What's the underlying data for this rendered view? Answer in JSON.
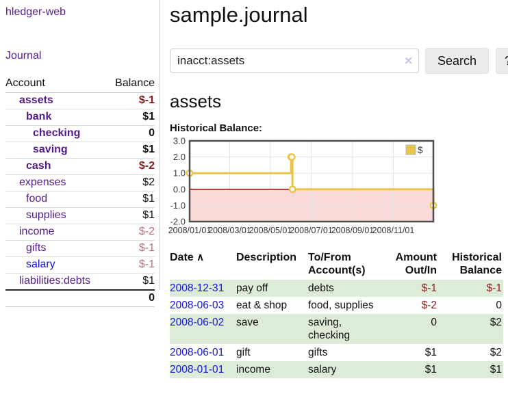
{
  "sidebar": {
    "app_title": "hledger-web",
    "nav_journal": "Journal",
    "accounts_table": {
      "col_account": "Account",
      "col_balance": "Balance",
      "rows": [
        {
          "name": "assets",
          "balance": "$-1",
          "indent": 1,
          "bold": true,
          "neg": true
        },
        {
          "name": "bank",
          "balance": "$1",
          "indent": 2,
          "bold": true
        },
        {
          "name": "checking",
          "balance": "0",
          "indent": 3,
          "bold": true
        },
        {
          "name": "saving",
          "balance": "$1",
          "indent": 3,
          "bold": true
        },
        {
          "name": "cash",
          "balance": "$-2",
          "indent": 2,
          "bold": true,
          "neg": true
        },
        {
          "name": "expenses",
          "balance": "$2",
          "indent": 1
        },
        {
          "name": "food",
          "balance": "$1",
          "indent": 2
        },
        {
          "name": "supplies",
          "balance": "$1",
          "indent": 2
        },
        {
          "name": "income",
          "balance": "$-2",
          "indent": 1,
          "negLight": true
        },
        {
          "name": "gifts",
          "balance": "$-1",
          "indent": 2,
          "negLight": true
        },
        {
          "name": "salary",
          "balance": "$-1",
          "indent": 2,
          "negLight": true,
          "blue": true
        },
        {
          "name": "liabilities:debts",
          "balance": "$1",
          "indent": 1
        }
      ],
      "total": "0"
    }
  },
  "main": {
    "title": "sample.journal",
    "search": {
      "value": "inacct:assets",
      "clear_icon": "✕",
      "button": "Search",
      "help_button": "?"
    },
    "account_heading": "assets",
    "chart_label": "Historical Balance:"
  },
  "chart_data": {
    "type": "line",
    "step": true,
    "title": "Historical Balance",
    "legend": "$",
    "legend_position": "top-right",
    "grid": true,
    "ylim": [
      -2.0,
      3.0
    ],
    "yticks": [
      "3.0",
      "2.0",
      "1.0",
      "0.0",
      "-1.0",
      "-2.0"
    ],
    "xticks": [
      "2008/01/01",
      "2008/03/01",
      "2008/05/01",
      "2008/07/01",
      "2008/09/01",
      "2008/11/01"
    ],
    "x_domain": [
      "2008-01-01",
      "2008-12-31"
    ],
    "series": [
      {
        "name": "$",
        "points": [
          {
            "x": "2008-01-01",
            "y": 1
          },
          {
            "x": "2008-06-01",
            "y": 2
          },
          {
            "x": "2008-06-02",
            "y": 2
          },
          {
            "x": "2008-06-03",
            "y": 0
          },
          {
            "x": "2008-12-31",
            "y": -1
          }
        ]
      }
    ],
    "colors": {
      "line": "#e8c44d",
      "marker_fill": "#ffffff",
      "negative_region": "#fad9d9",
      "zero_line": "#8b0000",
      "gridline": "#e3e3e3",
      "border": "#4d4d4d",
      "tick_text": "#333333"
    }
  },
  "journal": {
    "headers": {
      "date": "Date",
      "sort_icon": "∧",
      "description": "Description",
      "tofrom": "To/From Account(s)",
      "amount": "Amount Out/In",
      "balance": "Historical Balance"
    },
    "rows": [
      {
        "date": "2008-12-31",
        "description": "pay off",
        "accounts": "debts",
        "amount": "$-1",
        "balance": "$-1",
        "amount_neg": true,
        "balance_neg": true
      },
      {
        "date": "2008-06-03",
        "description": "eat & shop",
        "accounts": "food, supplies",
        "amount": "$-2",
        "balance": "0",
        "amount_neg": true
      },
      {
        "date": "2008-06-02",
        "description": "save",
        "accounts": "saving, checking",
        "amount": "0",
        "balance": "$2"
      },
      {
        "date": "2008-06-01",
        "description": "gift",
        "accounts": "gifts",
        "amount": "$1",
        "balance": "$2"
      },
      {
        "date": "2008-01-01",
        "description": "income",
        "accounts": "salary",
        "amount": "$1",
        "balance": "$1"
      }
    ]
  },
  "colors": {
    "link_purple": "#551a8b",
    "link_blue": "#1414e0",
    "negative_dark": "#8b1a1a",
    "negative_light": "#bc6c73",
    "row_stripe_green": "#ddecd8"
  }
}
